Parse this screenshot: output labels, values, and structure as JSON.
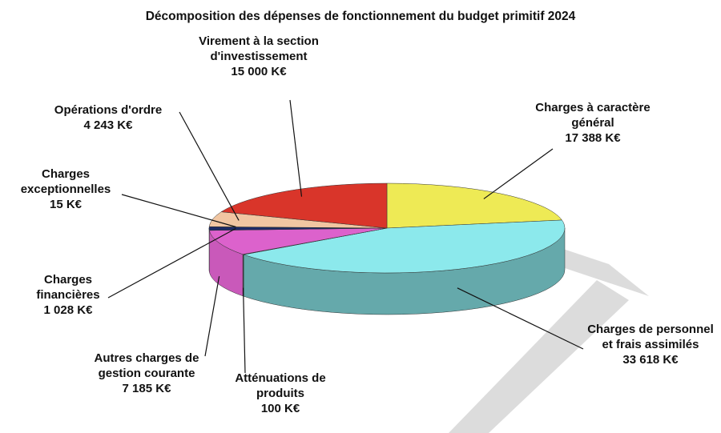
{
  "chart_data": {
    "type": "pie",
    "title": "Décomposition des dépenses de fonctionnement du budget primitif 2024",
    "categories": [
      "Charges à caractère général",
      "Charges de personnel et frais assimilés",
      "Atténuations de produits",
      "Autres charges de gestion courante",
      "Charges financières",
      "Charges exceptionnelles",
      "Opérations d'ordre",
      "Virement à la section d'investissement"
    ],
    "values": [
      17388,
      33618,
      100,
      7185,
      1028,
      15,
      4243,
      15000
    ],
    "value_labels": [
      "17 388 K€",
      "33 618 K€",
      "100 K€",
      "7 185 K€",
      "1 028 K€",
      "15 K€",
      "4 243 K€",
      "15 000 K€"
    ],
    "colors": [
      "#eeea55",
      "#8ce9ec",
      "#3a3a3a",
      "#dc62cc",
      "#1c2a66",
      "#111111",
      "#f1c6a2",
      "#d9352a"
    ]
  }
}
